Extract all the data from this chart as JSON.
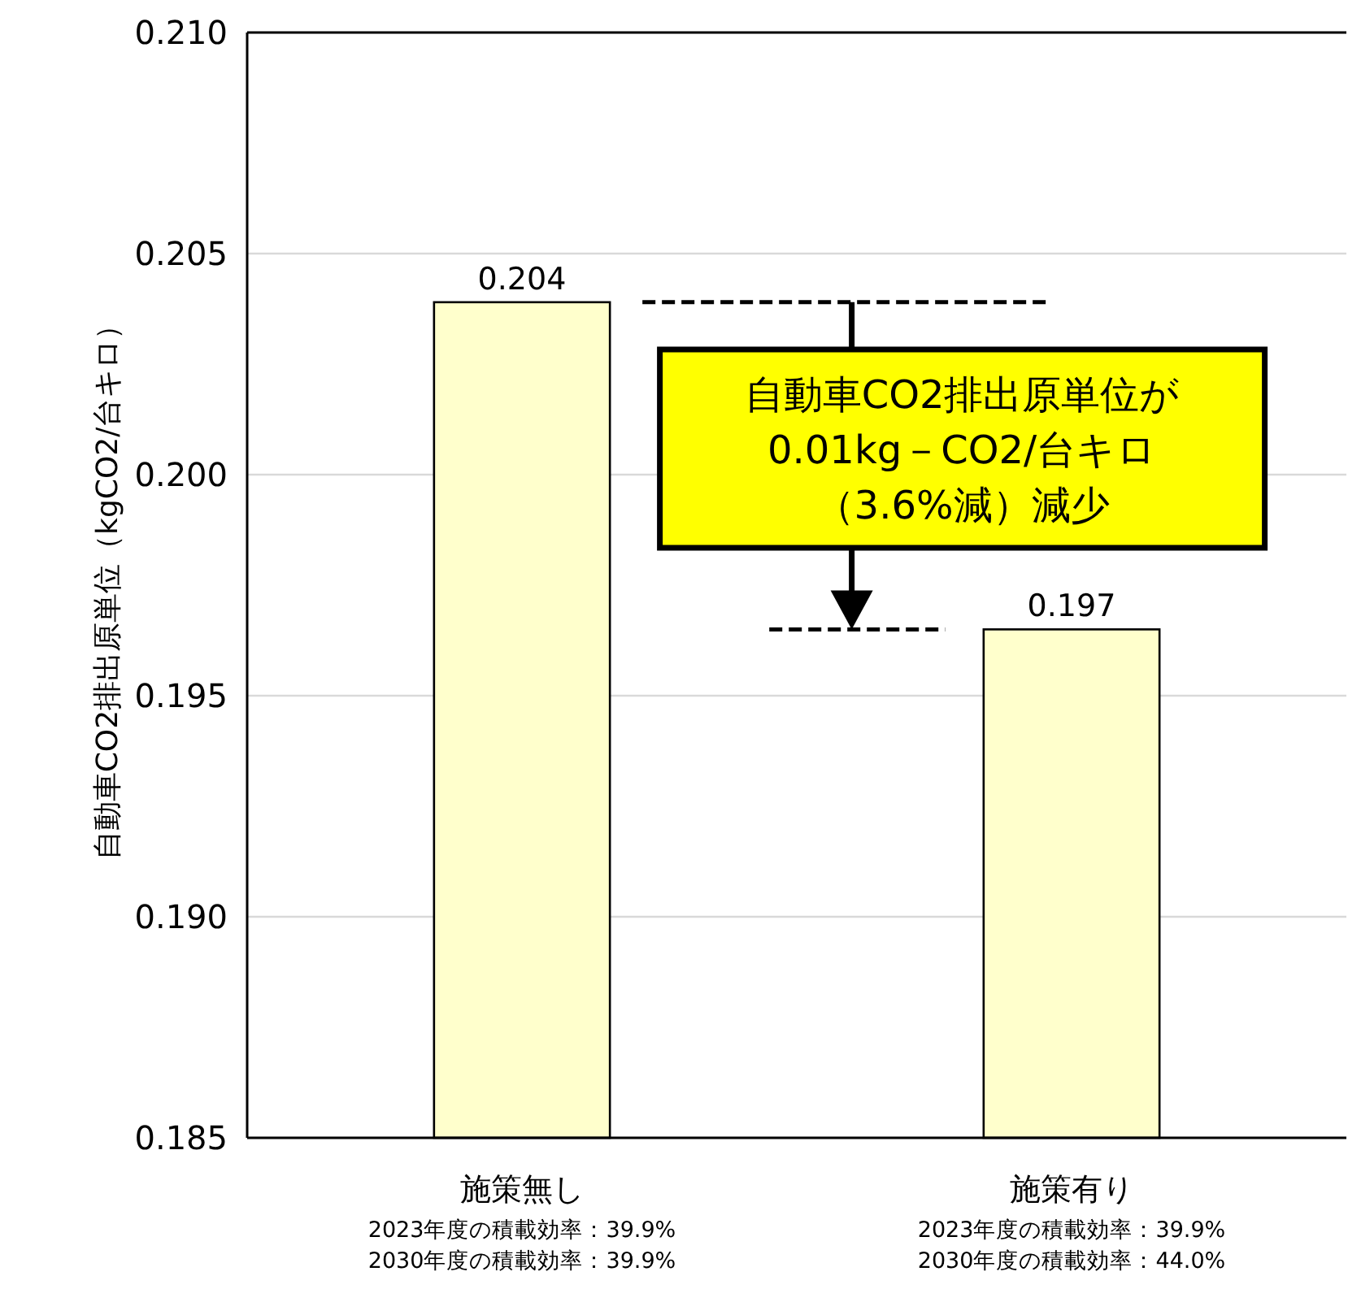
{
  "chart_data": {
    "type": "bar",
    "categories": [
      "施策無し\n2023年度の積載効率：39.9%\n2030年度の積載効率：39.9%",
      "施策有り\n2023年度の積載効率：39.9%\n2030年度の積載効率：44.0%"
    ],
    "values": [
      0.2039,
      0.1965
    ],
    "value_labels": [
      "0.204",
      "0.197"
    ],
    "color": "#ffffcc",
    "ylabel": "自動車CO2排出原単位（kgCO2/台キロ）",
    "ylim": [
      0.185,
      0.21
    ],
    "yticks": [
      "0.185",
      "0.190",
      "0.195",
      "0.200",
      "0.205",
      "0.210"
    ],
    "grid": "y",
    "ref_lines": [
      {
        "axis": "y",
        "value": 0.2039,
        "line_style": "dashed",
        "color": "#000000"
      },
      {
        "axis": "y",
        "value": 0.1965,
        "line_style": "dashed",
        "color": "#000000"
      }
    ],
    "annotations": [
      "自動車CO2排出原単位が",
      "0.01kg－CO2/台キロ",
      "（3.6%減）減少"
    ]
  }
}
